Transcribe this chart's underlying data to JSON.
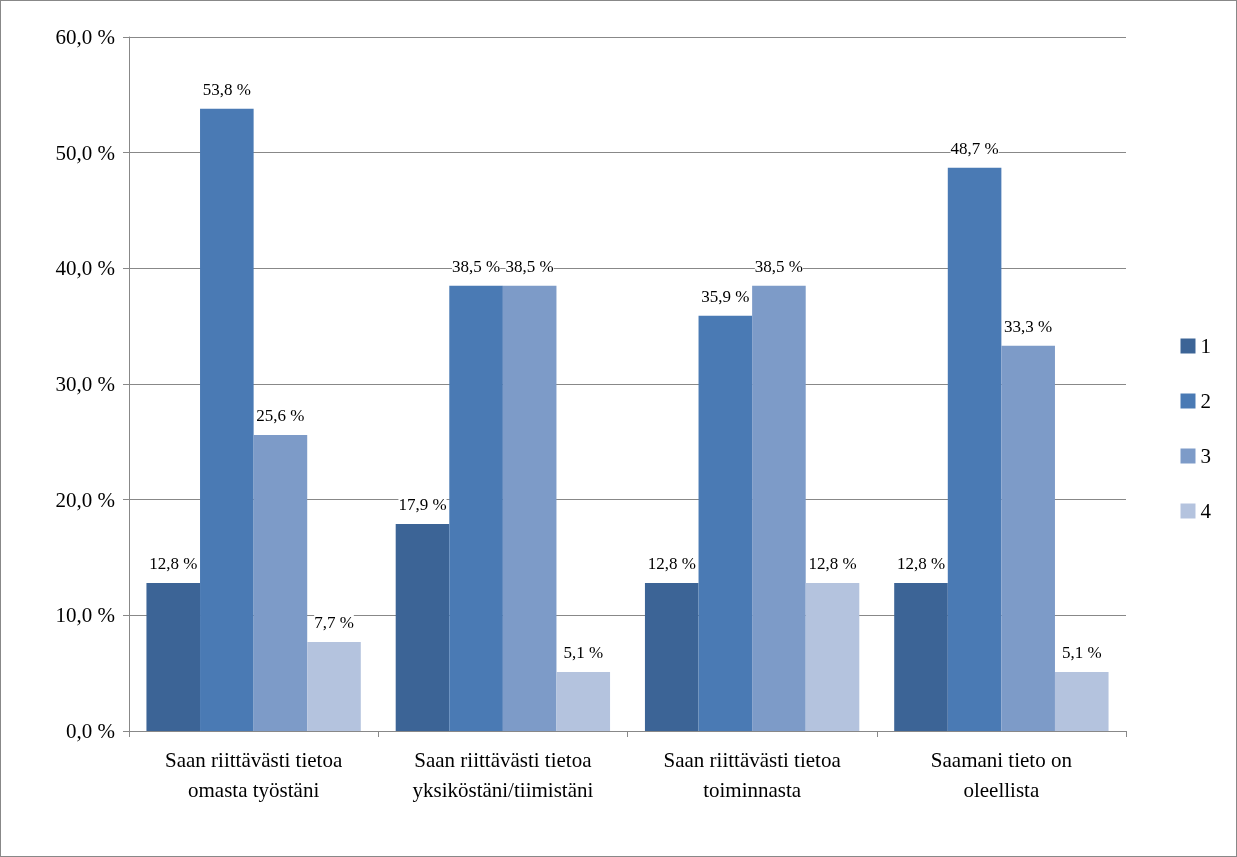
{
  "chart_data": {
    "type": "bar",
    "categories": [
      "Saan riittävästi tietoa omasta työstäni",
      "Saan riittävästi tietoa yksiköstäni/tiimistäni",
      "Saan riittävästi tietoa toiminnasta",
      "Saamani tieto on oleellista"
    ],
    "series": [
      {
        "name": "1",
        "color": "#3c6496",
        "values": [
          12.8,
          17.9,
          12.8,
          12.8
        ],
        "value_labels": [
          "12,8 %",
          "17,9 %",
          "12,8 %",
          "12,8 %"
        ]
      },
      {
        "name": "2",
        "color": "#4a7ab4",
        "values": [
          53.8,
          38.5,
          35.9,
          48.7
        ],
        "value_labels": [
          "53,8 %",
          "38,5 %",
          "35,9 %",
          "48,7 %"
        ]
      },
      {
        "name": "3",
        "color": "#7d9bc8",
        "values": [
          25.6,
          38.5,
          38.5,
          33.3
        ],
        "value_labels": [
          "25,6 %",
          "38,5 %",
          "38,5 %",
          "33,3 %"
        ]
      },
      {
        "name": "4",
        "color": "#b4c3de",
        "values": [
          7.7,
          5.1,
          12.8,
          5.1
        ],
        "value_labels": [
          "7,7 %",
          "5,1 %",
          "12,8 %",
          "5,1 %"
        ]
      }
    ],
    "ylim": [
      0,
      60
    ],
    "yticks": [
      {
        "value": 0,
        "label": "0,0 %"
      },
      {
        "value": 10,
        "label": "10,0 %"
      },
      {
        "value": 20,
        "label": "20,0 %"
      },
      {
        "value": 30,
        "label": "30,0 %"
      },
      {
        "value": 40,
        "label": "40,0 %"
      },
      {
        "value": 50,
        "label": "50,0 %"
      },
      {
        "value": 60,
        "label": "60,0 %"
      }
    ],
    "grid": "y",
    "legend": "right"
  }
}
